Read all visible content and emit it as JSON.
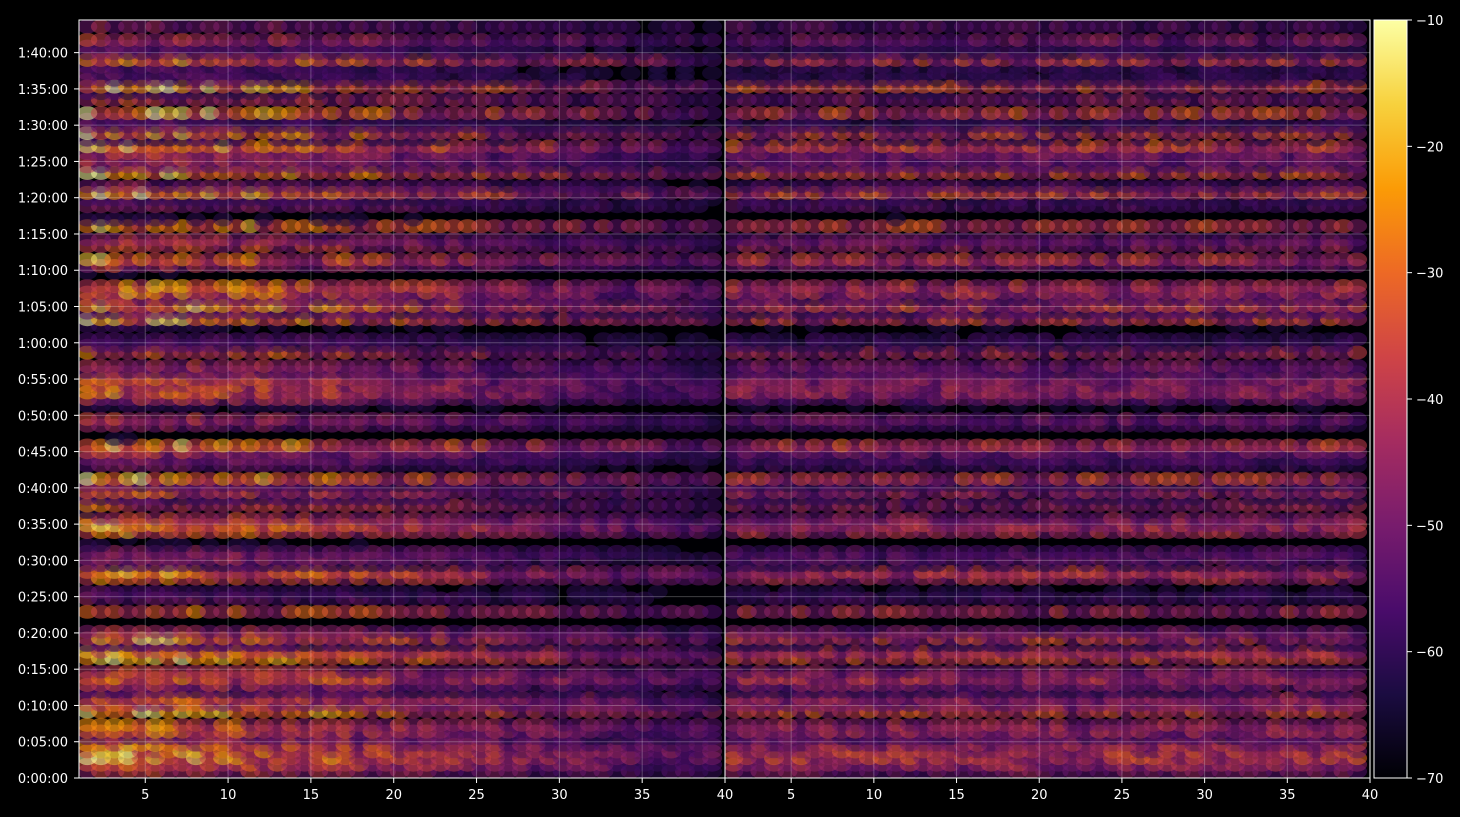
{
  "chart_data": {
    "type": "heatmap",
    "title": "",
    "colormap": "inferno",
    "colors": [
      "#000004",
      "#1b0c41",
      "#4a0c6b",
      "#781c6d",
      "#a52c60",
      "#cf4446",
      "#ed6925",
      "#fb9b06",
      "#f7d13d",
      "#fcffa4"
    ],
    "background": "#000000",
    "grid": true,
    "panels": [
      {
        "name": "",
        "x_ticks": [
          5,
          10,
          15,
          20,
          25,
          30,
          35,
          40
        ],
        "x_tick_labels": [
          "5",
          "10",
          "15",
          "20",
          "25",
          "30",
          "35",
          "40"
        ],
        "xlim": [
          1,
          40
        ]
      },
      {
        "name": "",
        "x_ticks": [
          5,
          10,
          15,
          20,
          25,
          30,
          35,
          40
        ],
        "x_tick_labels": [
          "5",
          "10",
          "15",
          "20",
          "25",
          "30",
          "35",
          "40"
        ],
        "xlim": [
          1,
          40
        ]
      }
    ],
    "y_axis": {
      "unit": "seconds",
      "ylim": [
        0,
        6270
      ],
      "ticks": [
        0,
        300,
        600,
        900,
        1200,
        1500,
        1800,
        2100,
        2400,
        2700,
        3000,
        3300,
        3600,
        3900,
        4200,
        4500,
        4800,
        5100,
        5400,
        5700,
        6000
      ],
      "tick_labels": [
        "0:00:00",
        "0:05:00",
        "0:10:00",
        "0:15:00",
        "0:20:00",
        "0:25:00",
        "0:30:00",
        "0:35:00",
        "0:40:00",
        "0:45:00",
        "0:50:00",
        "0:55:00",
        "1:00:00",
        "1:05:00",
        "1:10:00",
        "1:15:00",
        "1:20:00",
        "1:25:00",
        "1:30:00",
        "1:35:00",
        "1:40:00"
      ]
    },
    "colorbar": {
      "range": [
        -70,
        -10
      ],
      "ticks": [
        -10,
        -20,
        -30,
        -40,
        -50,
        -60,
        -70
      ],
      "tick_labels": [
        "−10",
        "−20",
        "−30",
        "−40",
        "−50",
        "−60",
        "−70"
      ]
    }
  }
}
